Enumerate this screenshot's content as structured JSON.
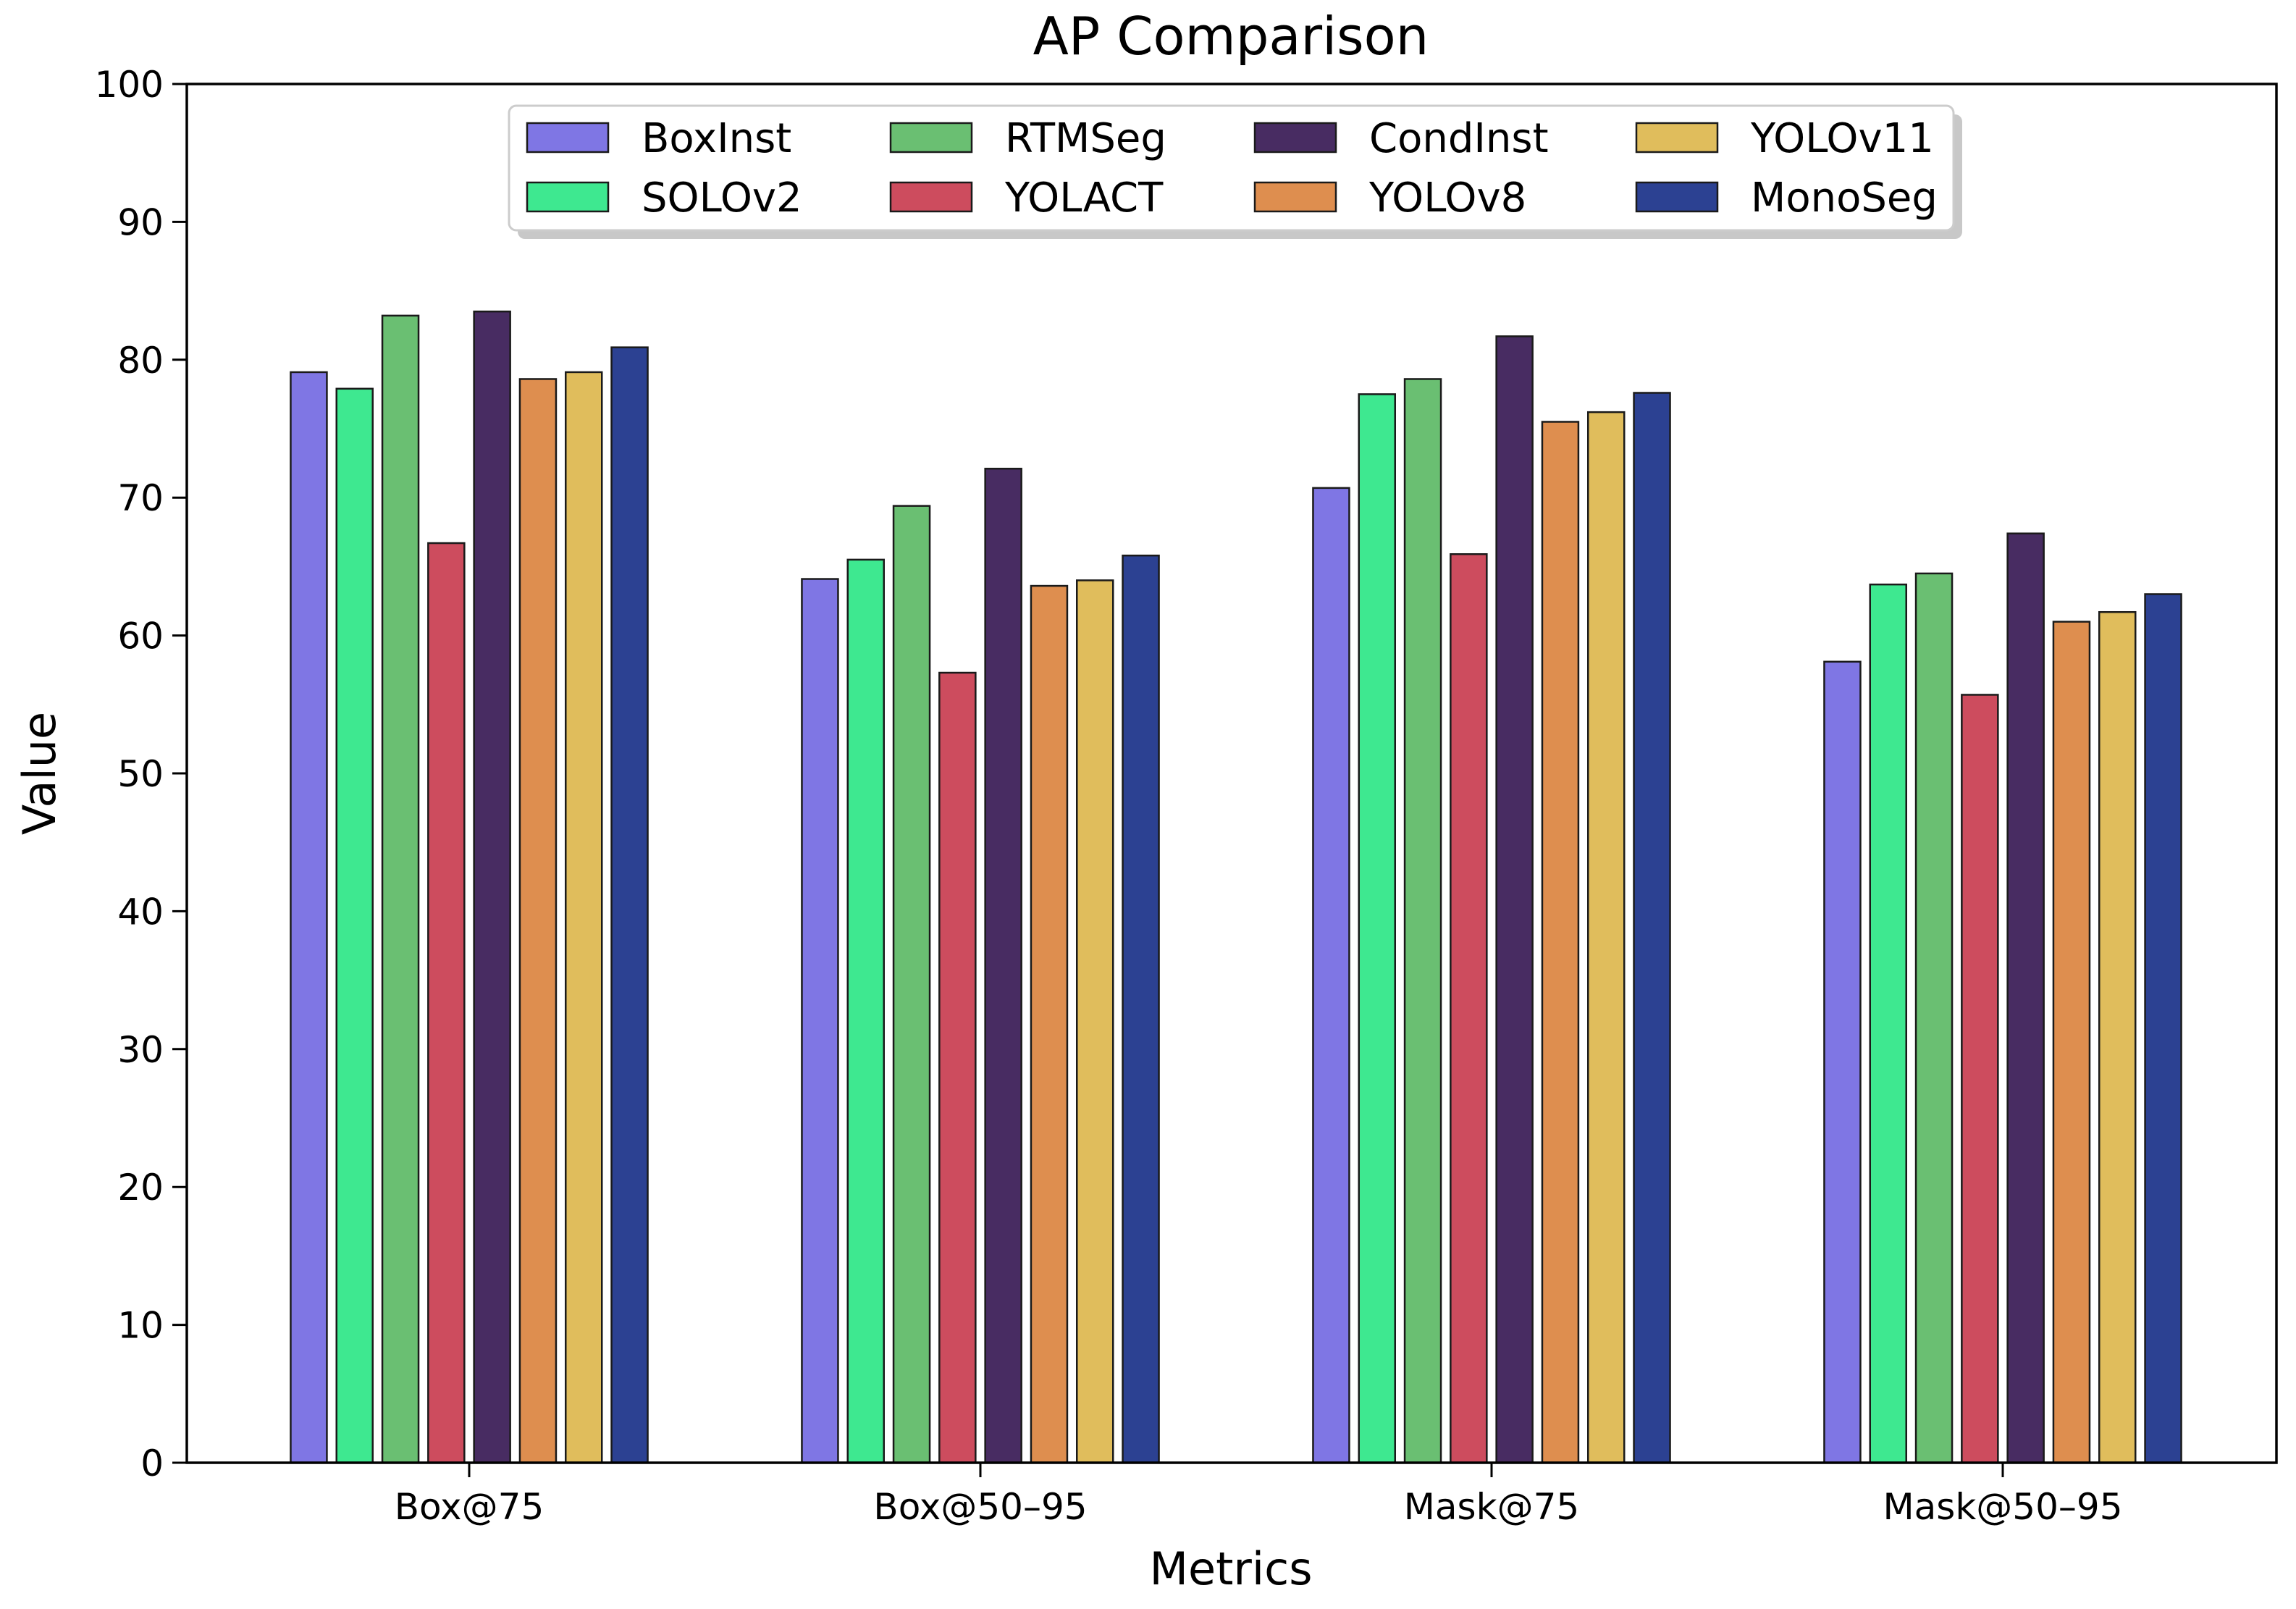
{
  "chart_data": {
    "type": "bar",
    "title": "AP Comparison",
    "xlabel": "Metrics",
    "ylabel": "Value",
    "ylim": [
      0,
      100
    ],
    "yticks": [
      0,
      10,
      20,
      30,
      40,
      50,
      60,
      70,
      80,
      90,
      100
    ],
    "categories": [
      "Box@75",
      "Box@50–95",
      "Mask@75",
      "Mask@50–95"
    ],
    "legend_position": "top-center",
    "series": [
      {
        "name": "BoxInst",
        "color": "#7f76e4",
        "values": [
          79.1,
          64.1,
          70.7,
          58.1
        ]
      },
      {
        "name": "SOLOv2",
        "color": "#3ee890",
        "values": [
          77.9,
          65.5,
          77.5,
          63.7
        ]
      },
      {
        "name": "RTMSeg",
        "color": "#6abf72",
        "values": [
          83.2,
          69.4,
          78.6,
          64.5
        ]
      },
      {
        "name": "YOLACT",
        "color": "#cd4c5e",
        "values": [
          66.7,
          57.3,
          65.9,
          55.7
        ]
      },
      {
        "name": "CondInst",
        "color": "#482c62",
        "values": [
          83.5,
          72.1,
          81.7,
          67.4
        ]
      },
      {
        "name": "YOLOv8",
        "color": "#de8e4f",
        "values": [
          78.6,
          63.6,
          75.5,
          61.0
        ]
      },
      {
        "name": "YOLOv11",
        "color": "#e0bd5c",
        "values": [
          79.1,
          64.0,
          76.2,
          61.7
        ]
      },
      {
        "name": "MonoSeg",
        "color": "#2c4192",
        "values": [
          80.9,
          65.8,
          77.6,
          63.0
        ]
      }
    ]
  }
}
